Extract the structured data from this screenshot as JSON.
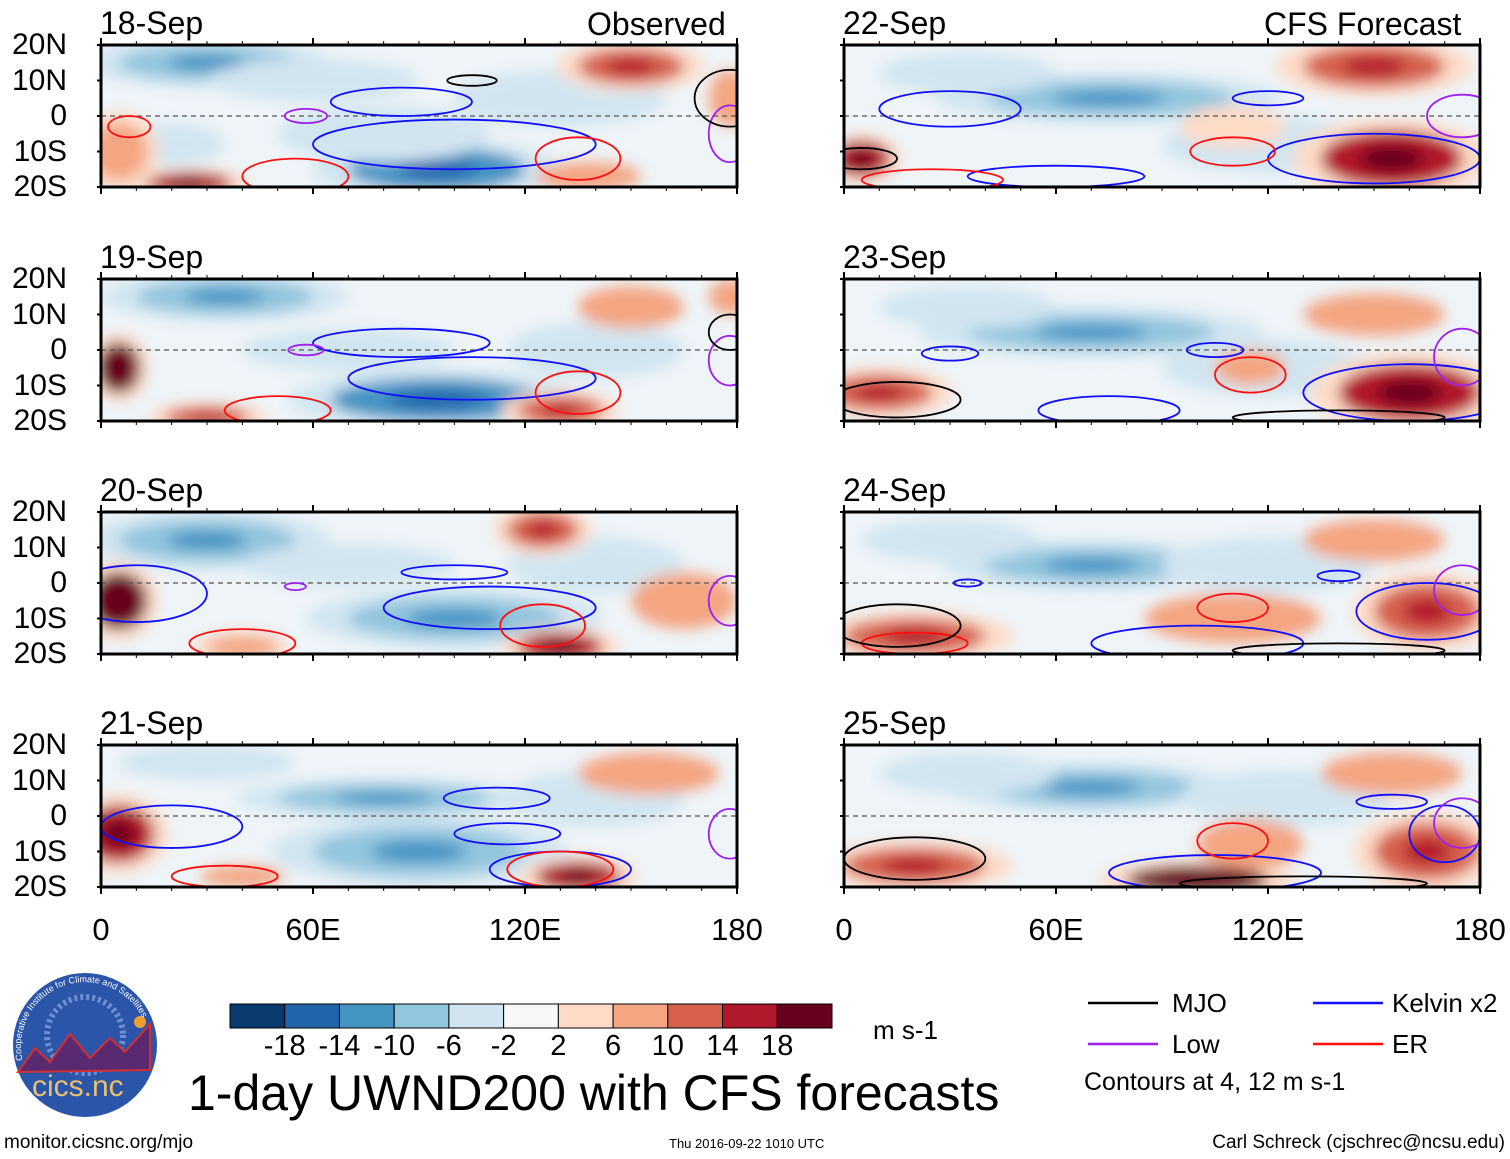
{
  "header": {
    "observed_label": "Observed",
    "forecast_label": "CFS Forecast"
  },
  "colors": {
    "bins": [
      "#0a3a6e",
      "#2166ac",
      "#4393c3",
      "#92c5de",
      "#d1e5f0",
      "#f7f7f7",
      "#fddbc7",
      "#f4a582",
      "#d6604d",
      "#b2182b",
      "#67001f"
    ],
    "MJO": "#000000",
    "Kelvin": "#1010ff",
    "Low": "#a020f0",
    "ER": "#ff1010"
  },
  "chart_data": {
    "type": "heatmap",
    "title": "1-day UWND200 with CFS forecasts",
    "variable": "200-hPa zonal wind anomaly",
    "units": "m s-1",
    "xlim": [
      0,
      180
    ],
    "ylim": [
      -20,
      20
    ],
    "x_ticks": [
      "0",
      "60E",
      "120E",
      "180"
    ],
    "y_ticks": [
      "20N",
      "10N",
      "0",
      "10S",
      "20S"
    ],
    "colorbar_levels": [
      "-18",
      "-14",
      "-10",
      "-6",
      "-2",
      "2",
      "6",
      "10",
      "14",
      "18"
    ],
    "legend": [
      {
        "name": "MJO",
        "color_key": "MJO"
      },
      {
        "name": "Kelvin x2",
        "color_key": "Kelvin"
      },
      {
        "name": "Low",
        "color_key": "Low"
      },
      {
        "name": "ER",
        "color_key": "ER"
      }
    ],
    "contour_note": "Contours at 4, 12 m s-1",
    "panels": [
      {
        "date": "18-Sep",
        "group": "observed",
        "anomalies": [
          [
            30,
            15,
            25,
            5,
            -10
          ],
          [
            95,
            -15,
            25,
            6,
            -14
          ],
          [
            60,
            10,
            30,
            6,
            -6
          ],
          [
            130,
            5,
            30,
            8,
            -6
          ],
          [
            20,
            -8,
            15,
            6,
            -6
          ],
          [
            80,
            -5,
            30,
            8,
            -6
          ],
          [
            150,
            14,
            15,
            5,
            10
          ],
          [
            5,
            -10,
            8,
            8,
            8
          ],
          [
            25,
            -19,
            12,
            3,
            14
          ],
          [
            138,
            -17,
            15,
            4,
            6
          ],
          [
            178,
            5,
            6,
            8,
            6
          ]
        ],
        "contours": [
          [
            "Kelvin",
            85,
            4,
            20,
            4
          ],
          [
            "Kelvin",
            100,
            -8,
            40,
            7
          ],
          [
            "ER",
            8,
            -3,
            6,
            3
          ],
          [
            "ER",
            135,
            -12,
            12,
            6
          ],
          [
            "ER",
            55,
            -17,
            15,
            5
          ],
          [
            "Low",
            58,
            0,
            6,
            2
          ],
          [
            "Low",
            178,
            -5,
            6,
            8
          ],
          [
            "MJO",
            105,
            10,
            7,
            1.5
          ],
          [
            "MJO",
            178,
            5,
            10,
            8
          ]
        ]
      },
      {
        "date": "19-Sep",
        "group": "observed",
        "anomalies": [
          [
            35,
            15,
            25,
            5,
            -10
          ],
          [
            95,
            -14,
            30,
            6,
            -12
          ],
          [
            70,
            0,
            30,
            6,
            -6
          ],
          [
            140,
            0,
            25,
            8,
            -6
          ],
          [
            150,
            12,
            15,
            6,
            6
          ],
          [
            5,
            -5,
            6,
            7,
            18
          ],
          [
            130,
            -17,
            12,
            4,
            10
          ],
          [
            30,
            -19,
            12,
            3,
            10
          ],
          [
            178,
            15,
            6,
            5,
            6
          ]
        ],
        "contours": [
          [
            "Kelvin",
            85,
            2,
            25,
            4
          ],
          [
            "Kelvin",
            105,
            -8,
            35,
            6
          ],
          [
            "ER",
            135,
            -12,
            12,
            6
          ],
          [
            "ER",
            50,
            -17,
            15,
            4
          ],
          [
            "Low",
            58,
            0,
            5,
            1.5
          ],
          [
            "Low",
            178,
            -3,
            6,
            7
          ],
          [
            "MJO",
            178,
            5,
            6,
            5
          ]
        ]
      },
      {
        "date": "20-Sep",
        "group": "observed",
        "anomalies": [
          [
            30,
            12,
            25,
            6,
            -10
          ],
          [
            100,
            -10,
            30,
            6,
            -10
          ],
          [
            70,
            5,
            30,
            6,
            -6
          ],
          [
            140,
            5,
            25,
            8,
            -6
          ],
          [
            125,
            15,
            10,
            5,
            10
          ],
          [
            5,
            -5,
            8,
            8,
            18
          ],
          [
            130,
            -18,
            12,
            4,
            14
          ],
          [
            40,
            -18,
            10,
            3,
            8
          ],
          [
            165,
            -5,
            15,
            8,
            6
          ]
        ],
        "contours": [
          [
            "Kelvin",
            100,
            3,
            15,
            2
          ],
          [
            "Kelvin",
            110,
            -7,
            30,
            6
          ],
          [
            "Kelvin",
            10,
            -3,
            20,
            8
          ],
          [
            "ER",
            125,
            -12,
            12,
            6
          ],
          [
            "ER",
            40,
            -17,
            15,
            4
          ],
          [
            "Low",
            55,
            -1,
            3,
            1
          ],
          [
            "Low",
            178,
            -5,
            6,
            7
          ]
        ]
      },
      {
        "date": "21-Sep",
        "group": "observed",
        "anomalies": [
          [
            80,
            5,
            30,
            4,
            -10
          ],
          [
            90,
            -10,
            30,
            7,
            -10
          ],
          [
            30,
            15,
            25,
            5,
            -6
          ],
          [
            140,
            5,
            25,
            8,
            -6
          ],
          [
            155,
            12,
            20,
            6,
            6
          ],
          [
            5,
            -5,
            10,
            8,
            14
          ],
          [
            135,
            -17,
            12,
            4,
            14
          ],
          [
            40,
            -17,
            12,
            3,
            6
          ]
        ],
        "contours": [
          [
            "Kelvin",
            112,
            5,
            15,
            3
          ],
          [
            "Kelvin",
            115,
            -5,
            15,
            3
          ],
          [
            "Kelvin",
            20,
            -3,
            20,
            6
          ],
          [
            "Kelvin",
            130,
            -15,
            20,
            5
          ],
          [
            "ER",
            130,
            -15,
            15,
            5
          ],
          [
            "ER",
            35,
            -17,
            15,
            3
          ],
          [
            "Low",
            178,
            -5,
            6,
            7
          ]
        ]
      },
      {
        "date": "22-Sep",
        "group": "forecast",
        "anomalies": [
          [
            75,
            5,
            35,
            5,
            -10
          ],
          [
            35,
            12,
            25,
            6,
            -6
          ],
          [
            120,
            -8,
            30,
            8,
            -6
          ],
          [
            150,
            14,
            20,
            6,
            10
          ],
          [
            155,
            -12,
            20,
            8,
            14
          ],
          [
            5,
            -12,
            8,
            5,
            14
          ],
          [
            110,
            -3,
            15,
            6,
            2
          ]
        ],
        "contours": [
          [
            "Kelvin",
            30,
            2,
            20,
            5
          ],
          [
            "Kelvin",
            60,
            -17,
            25,
            3
          ],
          [
            "Kelvin",
            120,
            5,
            10,
            2
          ],
          [
            "Kelvin",
            150,
            -12,
            30,
            7
          ],
          [
            "ER",
            110,
            -10,
            12,
            4
          ],
          [
            "ER",
            25,
            -18,
            20,
            3
          ],
          [
            "Low",
            175,
            0,
            10,
            6
          ],
          [
            "MJO",
            5,
            -12,
            10,
            3
          ]
        ]
      },
      {
        "date": "23-Sep",
        "group": "forecast",
        "anomalies": [
          [
            70,
            5,
            35,
            5,
            -10
          ],
          [
            35,
            12,
            25,
            6,
            -6
          ],
          [
            120,
            -5,
            30,
            8,
            -4
          ],
          [
            150,
            10,
            20,
            6,
            6
          ],
          [
            160,
            -12,
            20,
            8,
            14
          ],
          [
            10,
            -12,
            15,
            5,
            10
          ],
          [
            115,
            -5,
            10,
            5,
            6
          ]
        ],
        "contours": [
          [
            "Kelvin",
            30,
            -1,
            8,
            2
          ],
          [
            "Kelvin",
            75,
            -17,
            20,
            4
          ],
          [
            "Kelvin",
            105,
            0,
            8,
            2
          ],
          [
            "Kelvin",
            160,
            -12,
            30,
            8
          ],
          [
            "ER",
            115,
            -7,
            10,
            5
          ],
          [
            "Low",
            175,
            -2,
            8,
            8
          ],
          [
            "MJO",
            15,
            -14,
            18,
            5
          ],
          [
            "MJO",
            140,
            -19,
            30,
            2
          ]
        ]
      },
      {
        "date": "24-Sep",
        "group": "forecast",
        "anomalies": [
          [
            70,
            5,
            30,
            5,
            -10
          ],
          [
            30,
            12,
            25,
            6,
            -6
          ],
          [
            120,
            5,
            30,
            8,
            -4
          ],
          [
            150,
            12,
            20,
            6,
            6
          ],
          [
            165,
            -8,
            15,
            8,
            10
          ],
          [
            20,
            -15,
            20,
            5,
            10
          ],
          [
            110,
            -10,
            25,
            7,
            6
          ]
        ],
        "contours": [
          [
            "Kelvin",
            35,
            0,
            4,
            1
          ],
          [
            "Kelvin",
            100,
            -17,
            30,
            5
          ],
          [
            "Kelvin",
            140,
            2,
            6,
            1.5
          ],
          [
            "Kelvin",
            165,
            -8,
            20,
            8
          ],
          [
            "ER",
            110,
            -7,
            10,
            4
          ],
          [
            "ER",
            20,
            -17,
            15,
            3
          ],
          [
            "Low",
            175,
            -2,
            8,
            7
          ],
          [
            "MJO",
            15,
            -12,
            18,
            6
          ],
          [
            "MJO",
            140,
            -19,
            30,
            2
          ]
        ]
      },
      {
        "date": "25-Sep",
        "group": "forecast",
        "anomalies": [
          [
            70,
            8,
            30,
            5,
            -10
          ],
          [
            35,
            12,
            25,
            6,
            -6
          ],
          [
            125,
            5,
            30,
            8,
            -4
          ],
          [
            155,
            12,
            20,
            6,
            6
          ],
          [
            165,
            -10,
            15,
            8,
            10
          ],
          [
            20,
            -14,
            20,
            5,
            10
          ],
          [
            100,
            -18,
            20,
            4,
            18
          ],
          [
            115,
            -8,
            15,
            7,
            6
          ]
        ],
        "contours": [
          [
            "Kelvin",
            155,
            4,
            10,
            2
          ],
          [
            "Kelvin",
            105,
            -16,
            30,
            5
          ],
          [
            "Kelvin",
            170,
            -5,
            10,
            8
          ],
          [
            "ER",
            110,
            -7,
            10,
            5
          ],
          [
            "Low",
            175,
            -2,
            8,
            7
          ],
          [
            "MJO",
            20,
            -12,
            20,
            6
          ],
          [
            "MJO",
            130,
            -19,
            35,
            2
          ]
        ]
      }
    ]
  },
  "footer": {
    "logo_text": "cics.nc",
    "logo_ring_text": "Cooperative Institute for Climate and Satellites",
    "url": "monitor.cicsnc.org/mjo",
    "timestamp": "Thu 2016-09-22 1010 UTC",
    "author": "Carl Schreck (cjschrec@ncsu.edu)"
  }
}
